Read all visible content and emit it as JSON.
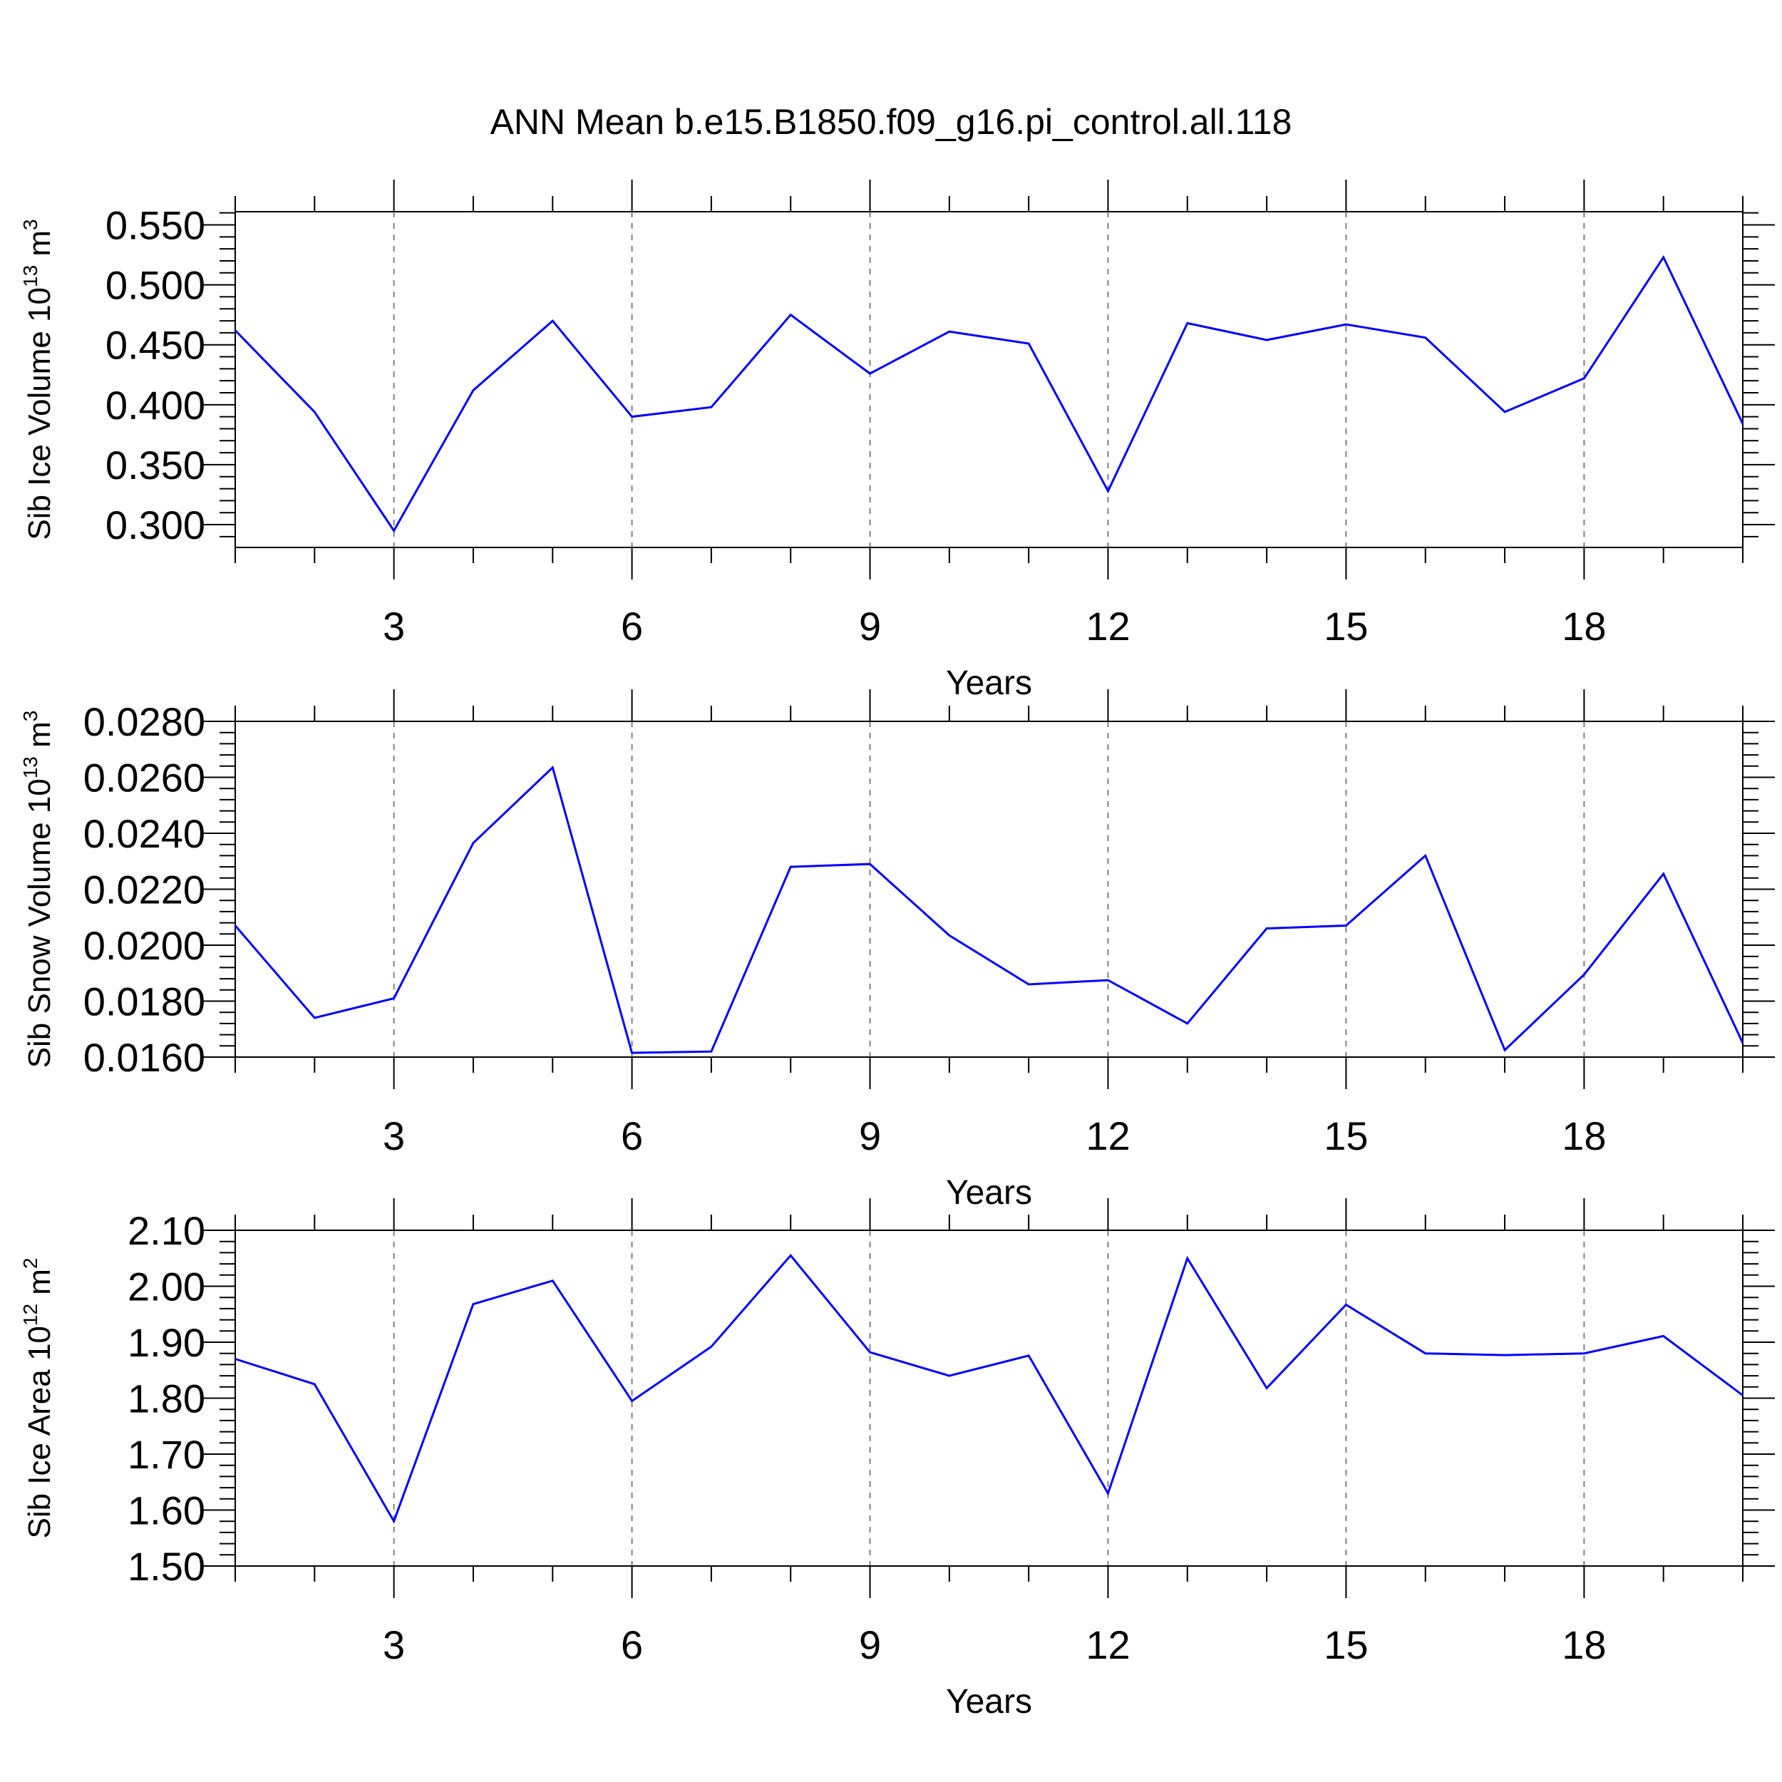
{
  "title": "ANN Mean b.e15.B1850.f09_g16.pi_control.all.118",
  "colors": {
    "line": "#0000ff",
    "frame": "#000000",
    "grid": "#808080"
  },
  "chart_data": [
    {
      "type": "line",
      "xlabel": "Years",
      "ylabel": {
        "main": "Sib Ice Volume 10",
        "exp": "13",
        "unit": " m",
        "unit_exp": "3"
      },
      "x": [
        1,
        2,
        3,
        4,
        5,
        6,
        7,
        8,
        9,
        10,
        11,
        12,
        13,
        14,
        15,
        16,
        17,
        18,
        19,
        20
      ],
      "xlim": [
        1,
        20
      ],
      "xticks": [
        "3",
        "6",
        "9",
        "12",
        "15",
        "18"
      ],
      "ylim": [
        0.281,
        0.561
      ],
      "yticks": [
        "0.300",
        "0.350",
        "0.400",
        "0.450",
        "0.500",
        "0.550"
      ],
      "grid": "vertical dashed at major x ticks",
      "series": [
        {
          "values": [
            0.462,
            0.394,
            0.295,
            0.412,
            0.47,
            0.39,
            0.398,
            0.475,
            0.426,
            0.461,
            0.451,
            0.328,
            0.468,
            0.454,
            0.467,
            0.456,
            0.394,
            0.422,
            0.523,
            0.384
          ]
        }
      ]
    },
    {
      "type": "line",
      "xlabel": "Years",
      "ylabel": {
        "main": "Sib Snow Volume 10",
        "exp": "13",
        "unit": " m",
        "unit_exp": "3"
      },
      "x": [
        1,
        2,
        3,
        4,
        5,
        6,
        7,
        8,
        9,
        10,
        11,
        12,
        13,
        14,
        15,
        16,
        17,
        18,
        19,
        20
      ],
      "xlim": [
        1,
        20
      ],
      "xticks": [
        "3",
        "6",
        "9",
        "12",
        "15",
        "18"
      ],
      "ylim": [
        0.016,
        0.028
      ],
      "yticks": [
        "0.0160",
        "0.0180",
        "0.0200",
        "0.0220",
        "0.0240",
        "0.0260",
        "0.0280"
      ],
      "grid": "vertical dashed at major x ticks",
      "series": [
        {
          "values": [
            0.0207,
            0.0174,
            0.0181,
            0.02365,
            0.02635,
            0.01615,
            0.0162,
            0.0228,
            0.0229,
            0.02035,
            0.0186,
            0.01875,
            0.0172,
            0.0206,
            0.0207,
            0.0232,
            0.01625,
            0.01895,
            0.02255,
            0.0165
          ]
        }
      ]
    },
    {
      "type": "line",
      "xlabel": "Years",
      "ylabel": {
        "main": "Sib Ice Area 10",
        "exp": "12",
        "unit": " m",
        "unit_exp": "2"
      },
      "x": [
        1,
        2,
        3,
        4,
        5,
        6,
        7,
        8,
        9,
        10,
        11,
        12,
        13,
        14,
        15,
        16,
        17,
        18,
        19,
        20
      ],
      "xlim": [
        1,
        20
      ],
      "xticks": [
        "3",
        "6",
        "9",
        "12",
        "15",
        "18"
      ],
      "ylim": [
        1.5,
        2.1
      ],
      "yticks": [
        "1.50",
        "1.60",
        "1.70",
        "1.80",
        "1.90",
        "2.00",
        "2.10"
      ],
      "grid": "vertical dashed at major x ticks",
      "series": [
        {
          "values": [
            1.87,
            1.825,
            1.58,
            1.968,
            2.01,
            1.795,
            1.892,
            2.055,
            1.882,
            1.84,
            1.876,
            1.63,
            2.05,
            1.818,
            1.967,
            1.88,
            1.877,
            1.88,
            1.911,
            1.805
          ]
        }
      ]
    }
  ]
}
